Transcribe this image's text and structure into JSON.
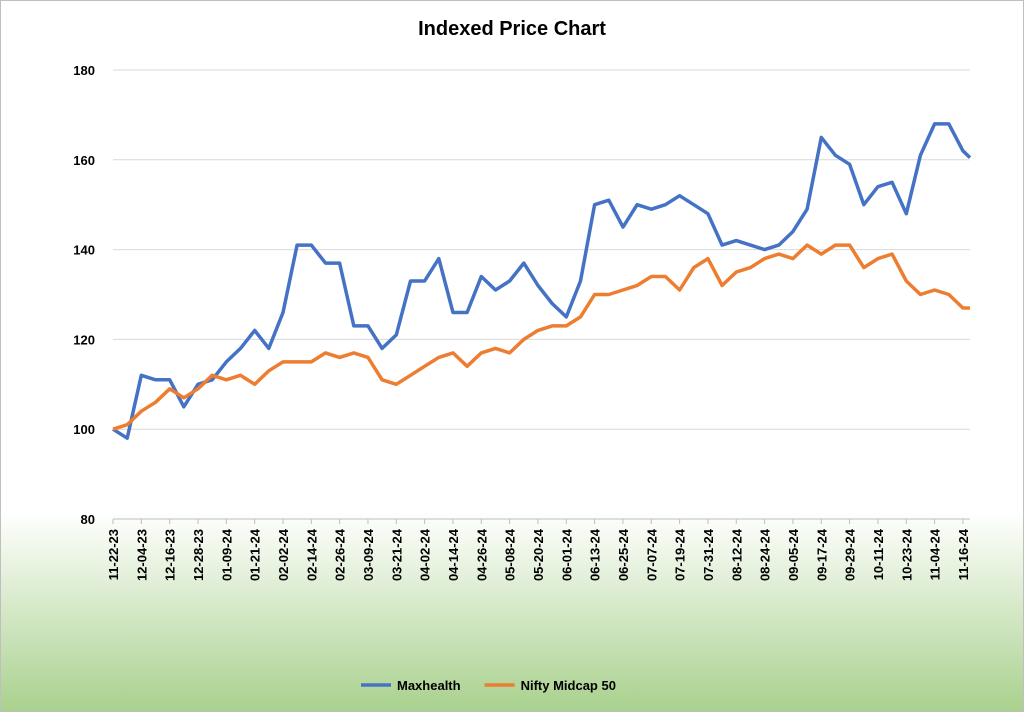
{
  "chart_data": {
    "type": "line",
    "title": "Indexed Price Chart",
    "x": [
      "11-22-23",
      "11-28-23",
      "12-04-23",
      "12-10-23",
      "12-16-23",
      "12-22-23",
      "12-28-23",
      "01-03-24",
      "01-09-24",
      "01-15-24",
      "01-21-24",
      "01-27-24",
      "02-02-24",
      "02-08-24",
      "02-14-24",
      "02-20-24",
      "02-26-24",
      "03-03-24",
      "03-09-24",
      "03-15-24",
      "03-21-24",
      "03-27-24",
      "04-02-24",
      "04-08-24",
      "04-14-24",
      "04-20-24",
      "04-26-24",
      "05-02-24",
      "05-08-24",
      "05-14-24",
      "05-20-24",
      "05-26-24",
      "06-01-24",
      "06-07-24",
      "06-13-24",
      "06-19-24",
      "06-25-24",
      "07-01-24",
      "07-07-24",
      "07-13-24",
      "07-19-24",
      "07-25-24",
      "07-31-24",
      "08-06-24",
      "08-12-24",
      "08-18-24",
      "08-24-24",
      "08-30-24",
      "09-05-24",
      "09-11-24",
      "09-17-24",
      "09-23-24",
      "09-29-24",
      "10-05-24",
      "10-11-24",
      "10-17-24",
      "10-23-24",
      "10-29-24",
      "11-04-24",
      "11-10-24",
      "11-16-24",
      "11-19-24"
    ],
    "xlim": [
      "11-22-23",
      "11-19-24"
    ],
    "xticks": [
      "11-22-23",
      "12-04-23",
      "12-16-23",
      "12-28-23",
      "01-09-24",
      "01-21-24",
      "02-02-24",
      "02-14-24",
      "02-26-24",
      "03-09-24",
      "03-21-24",
      "04-02-24",
      "04-14-24",
      "04-26-24",
      "05-08-24",
      "05-20-24",
      "06-01-24",
      "06-13-24",
      "06-25-24",
      "07-07-24",
      "07-19-24",
      "07-31-24",
      "08-12-24",
      "08-24-24",
      "09-05-24",
      "09-17-24",
      "09-29-24",
      "10-11-24",
      "10-23-24",
      "11-04-24",
      "11-16-24"
    ],
    "ylim": [
      80,
      180
    ],
    "yticks": [
      80,
      100,
      120,
      140,
      160,
      180
    ],
    "grid": true,
    "legend": "bottom",
    "series": [
      {
        "name": "Maxhealth",
        "color": "#4472c4",
        "values": [
          100,
          98,
          112,
          111,
          111,
          105,
          110,
          111,
          115,
          118,
          122,
          118,
          126,
          141,
          141,
          137,
          137,
          123,
          123,
          118,
          121,
          133,
          133,
          138,
          126,
          126,
          134,
          131,
          133,
          137,
          132,
          128,
          125,
          133,
          150,
          151,
          145,
          150,
          149,
          150,
          152,
          150,
          148,
          141,
          142,
          141,
          140,
          141,
          144,
          149,
          165,
          161,
          159,
          150,
          154,
          155,
          148,
          161,
          168,
          168,
          162,
          160.5
        ]
      },
      {
        "name": "Nifty Midcap 50",
        "color": "#ed7d31",
        "values": [
          100,
          101,
          104,
          106,
          109,
          107,
          109,
          112,
          111,
          112,
          110,
          113,
          115,
          115,
          115,
          117,
          116,
          117,
          116,
          111,
          110,
          112,
          114,
          116,
          117,
          114,
          117,
          118,
          117,
          120,
          122,
          123,
          123,
          125,
          130,
          130,
          131,
          132,
          134,
          134,
          131,
          136,
          138,
          132,
          135,
          136,
          138,
          139,
          138,
          141,
          139,
          141,
          141,
          136,
          138,
          139,
          133,
          130,
          131,
          130,
          127,
          127
        ]
      }
    ]
  }
}
